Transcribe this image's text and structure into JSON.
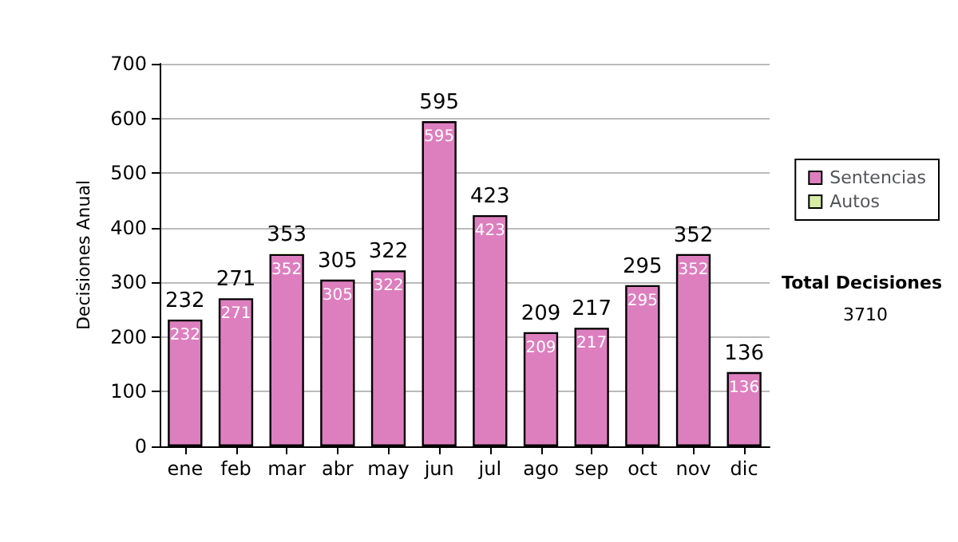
{
  "chart_data": {
    "type": "bar",
    "stacked": true,
    "ylabel": "Decisiones Anual",
    "categories": [
      "ene",
      "feb",
      "mar",
      "abr",
      "may",
      "jun",
      "jul",
      "ago",
      "sep",
      "oct",
      "nov",
      "dic"
    ],
    "series": [
      {
        "name": "Sentencias",
        "color": "#dd7fbf",
        "values": [
          232,
          271,
          352,
          305,
          322,
          595,
          423,
          209,
          217,
          295,
          352,
          136
        ],
        "value_labels": [
          "232",
          "271",
          "352",
          "305",
          "322",
          "595",
          "423",
          "209",
          "217",
          "295",
          "352",
          "136"
        ]
      },
      {
        "name": "Autos",
        "color": "#d6eca4",
        "values": [
          0,
          0,
          1,
          0,
          0,
          0,
          0,
          0,
          0,
          0,
          0,
          0
        ]
      }
    ],
    "totals": [
      "232",
      "271",
      "353",
      "305",
      "322",
      "595",
      "423",
      "209",
      "217",
      "295",
      "352",
      "136"
    ],
    "ylim": [
      0,
      700
    ],
    "yticks": [
      0,
      100,
      200,
      300,
      400,
      500,
      600,
      700
    ],
    "grid": "y",
    "legend": "right",
    "annotations": [
      "Total Decisiones",
      "3710"
    ]
  }
}
